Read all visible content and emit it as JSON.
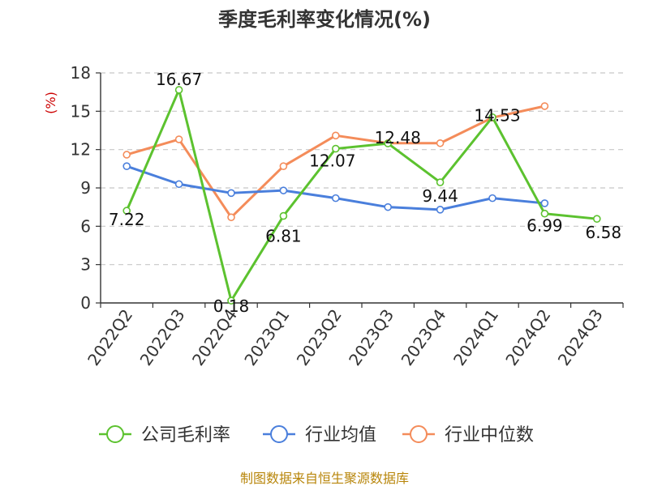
{
  "chart_data": {
    "type": "line",
    "title": "季度毛利率变化情况(%)",
    "ylabel": "(%)",
    "ylim": [
      0,
      18
    ],
    "yticks": [
      0,
      3,
      6,
      9,
      12,
      15,
      18
    ],
    "categories": [
      "2022Q2",
      "2022Q3",
      "2022Q4",
      "2023Q1",
      "2023Q2",
      "2023Q3",
      "2023Q4",
      "2024Q1",
      "2024Q2",
      "2024Q3"
    ],
    "grid": true,
    "legend_position": "bottom",
    "series": [
      {
        "name": "公司毛利率",
        "color": "#5cc22f",
        "values": [
          7.22,
          16.67,
          0.18,
          6.81,
          12.07,
          12.48,
          9.44,
          14.53,
          6.99,
          6.58
        ],
        "labels": [
          "7.22",
          "16.67",
          "0.18",
          "6.81",
          "12.07",
          "12.48",
          "9.44",
          "14.53",
          "6.99",
          "6.58"
        ]
      },
      {
        "name": "行业均值",
        "color": "#4a7fdc",
        "values": [
          10.7,
          9.3,
          8.6,
          8.8,
          8.2,
          7.5,
          7.3,
          8.2,
          7.8,
          null
        ]
      },
      {
        "name": "行业中位数",
        "color": "#f48c5a",
        "values": [
          11.6,
          12.8,
          6.7,
          10.7,
          13.1,
          12.5,
          12.5,
          14.5,
          15.4,
          null
        ]
      }
    ]
  },
  "source": "制图数据来自恒生聚源数据库"
}
